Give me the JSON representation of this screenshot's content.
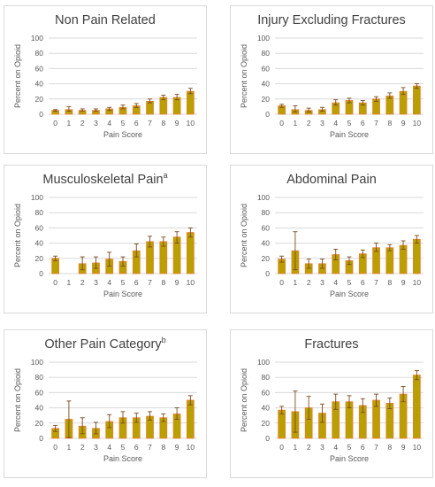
{
  "colors": {
    "bar": "#b8a000",
    "bar_edge": "#ed7d31",
    "error_bar": "#7b4a1e",
    "grid": "#d9d9d9",
    "text": "#595959",
    "border": "#d9d9d9"
  },
  "chart_data": [
    {
      "type": "bar",
      "title": "Non Pain Related",
      "title_sup": "",
      "xlabel": "Pain Score",
      "ylabel": "Percent on Opioid",
      "categories": [
        "0",
        "1",
        "2",
        "3",
        "4",
        "5",
        "6",
        "7",
        "8",
        "9",
        "10"
      ],
      "values": [
        5,
        6,
        5,
        5,
        7,
        9,
        11,
        17,
        22,
        22,
        30
      ],
      "err_low": [
        1,
        2,
        1,
        1,
        2,
        2,
        2,
        2,
        3,
        3,
        3
      ],
      "err_high": [
        1,
        4,
        2,
        2,
        2,
        3,
        3,
        3,
        3,
        4,
        4
      ],
      "y_ticks": [
        0,
        20,
        40,
        60,
        80,
        100
      ],
      "ylim": [
        0,
        100
      ],
      "grid": true,
      "legend": "none"
    },
    {
      "type": "bar",
      "title": "Injury Excluding Fractures",
      "title_sup": "",
      "xlabel": "Pain Score",
      "ylabel": "Percent on Opioid",
      "categories": [
        "0",
        "1",
        "2",
        "3",
        "4",
        "5",
        "6",
        "7",
        "8",
        "9",
        "10"
      ],
      "values": [
        11,
        6,
        5,
        6,
        15,
        18,
        15,
        20,
        24,
        30,
        37
      ],
      "err_low": [
        2,
        3,
        2,
        2,
        3,
        3,
        3,
        3,
        3,
        4,
        3
      ],
      "err_high": [
        2,
        5,
        3,
        3,
        4,
        3,
        3,
        3,
        4,
        5,
        3
      ],
      "y_ticks": [
        0,
        20,
        40,
        60,
        80,
        100
      ],
      "ylim": [
        0,
        100
      ],
      "grid": true,
      "legend": "none"
    },
    {
      "type": "bar",
      "title": "Musculoskeletal Pain",
      "title_sup": "a",
      "xlabel": "Pain Score",
      "ylabel": "Percent on Opioid",
      "categories": [
        "0",
        "1",
        "2",
        "3",
        "4",
        "5",
        "6",
        "7",
        "8",
        "9",
        "10"
      ],
      "values": [
        20,
        0,
        13,
        14,
        19,
        16,
        30,
        42,
        42,
        48,
        54
      ],
      "err_low": [
        3,
        0,
        8,
        7,
        9,
        6,
        8,
        7,
        6,
        8,
        6
      ],
      "err_high": [
        3,
        0,
        9,
        8,
        9,
        6,
        9,
        7,
        6,
        7,
        6
      ],
      "y_ticks": [
        0,
        20,
        40,
        60,
        80,
        100
      ],
      "ylim": [
        0,
        100
      ],
      "grid": true,
      "legend": "none"
    },
    {
      "type": "bar",
      "title": "Abdominal Pain",
      "title_sup": "",
      "xlabel": "Pain Score",
      "ylabel": "Percent on Opioid",
      "categories": [
        "0",
        "1",
        "2",
        "3",
        "4",
        "5",
        "6",
        "7",
        "8",
        "9",
        "10"
      ],
      "values": [
        19,
        30,
        13,
        13,
        25,
        17,
        26,
        34,
        34,
        37,
        45
      ],
      "err_low": [
        4,
        25,
        6,
        6,
        7,
        5,
        5,
        5,
        4,
        5,
        5
      ],
      "err_high": [
        4,
        25,
        6,
        6,
        7,
        5,
        5,
        6,
        4,
        6,
        5
      ],
      "y_ticks": [
        0,
        20,
        40,
        60,
        80,
        100
      ],
      "ylim": [
        0,
        100
      ],
      "grid": true,
      "legend": "none"
    },
    {
      "type": "bar",
      "title": "Other Pain Category",
      "title_sup": "b",
      "xlabel": "Pain Score",
      "ylabel": "Percent on Opioid",
      "categories": [
        "0",
        "1",
        "2",
        "3",
        "4",
        "5",
        "6",
        "7",
        "8",
        "9",
        "10"
      ],
      "values": [
        13,
        25,
        16,
        13,
        22,
        27,
        27,
        29,
        27,
        32,
        50
      ],
      "err_low": [
        4,
        24,
        10,
        7,
        8,
        7,
        6,
        5,
        5,
        7,
        6
      ],
      "err_high": [
        4,
        24,
        11,
        8,
        9,
        8,
        6,
        6,
        5,
        8,
        6
      ],
      "y_ticks": [
        0,
        20,
        40,
        60,
        80,
        100
      ],
      "ylim": [
        0,
        100
      ],
      "grid": true,
      "legend": "none"
    },
    {
      "type": "bar",
      "title": "Fractures",
      "title_sup": "",
      "xlabel": "Pain Score",
      "ylabel": "Percent on Opioid",
      "categories": [
        "0",
        "1",
        "2",
        "3",
        "4",
        "5",
        "6",
        "7",
        "8",
        "9",
        "10"
      ],
      "values": [
        37,
        35,
        40,
        33,
        48,
        48,
        43,
        50,
        46,
        58,
        83
      ],
      "err_low": [
        5,
        27,
        15,
        12,
        10,
        8,
        9,
        8,
        7,
        10,
        6
      ],
      "err_high": [
        5,
        27,
        15,
        12,
        10,
        8,
        9,
        8,
        7,
        10,
        6
      ],
      "y_ticks": [
        0,
        20,
        40,
        60,
        80,
        100
      ],
      "ylim": [
        0,
        100
      ],
      "grid": true,
      "legend": "none"
    }
  ]
}
